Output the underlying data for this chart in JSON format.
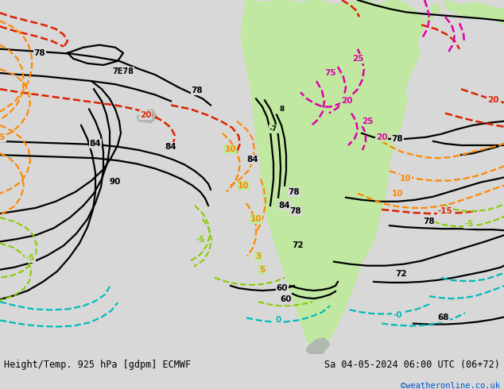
{
  "title_left": "Height/Temp. 925 hPa [gdpm] ECMWF",
  "title_right": "Sa 04-05-2024 06:00 UTC (06+72)",
  "watermark": "©weatheronline.co.uk",
  "bg_color": "#d8d8d8",
  "fig_width": 6.34,
  "fig_height": 4.9,
  "dpi": 100,
  "title_fontsize": 8.5,
  "watermark_color": "#0055cc",
  "watermark_fontsize": 7.5,
  "map_bg_color": "#d8d8d8",
  "south_america_color": "#c0e8a0",
  "land_gray_color": "#b0b8b0",
  "black": "#000000",
  "red": "#dd2200",
  "orange": "#ff8800",
  "pink": "#dd00aa",
  "green": "#88cc00",
  "cyan": "#00bbbb"
}
